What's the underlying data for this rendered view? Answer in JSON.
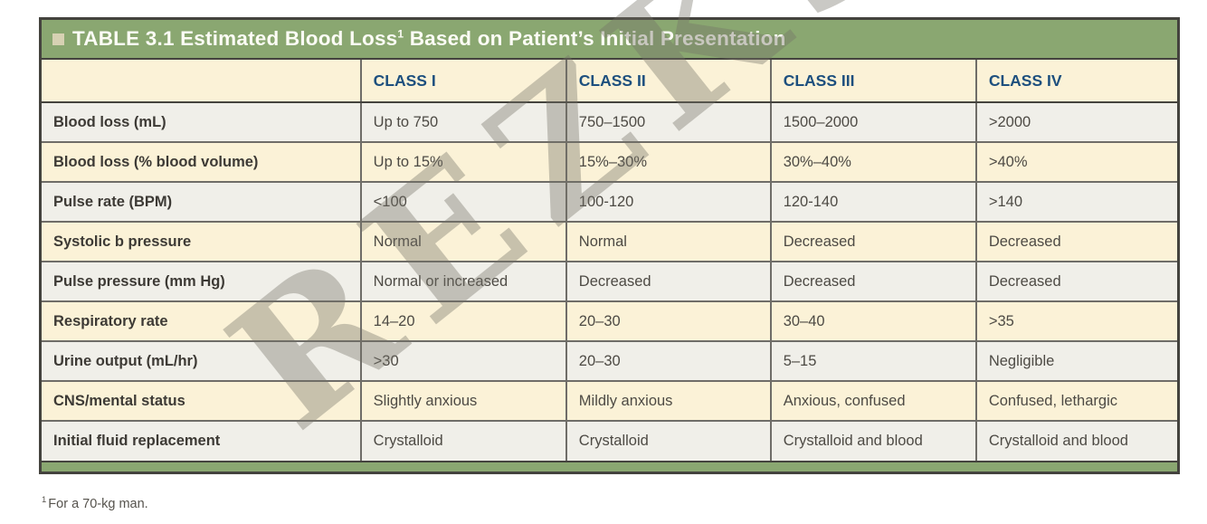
{
  "title": {
    "text": "TABLE 3.1 Estimated Blood Loss",
    "superscript": "1",
    "rest": " Based on Patient’s Initial Presentation"
  },
  "icons": {
    "title_bullet": "square-bullet"
  },
  "table": {
    "columns": [
      "",
      "CLASS I",
      "CLASS II",
      "CLASS III",
      "CLASS IV"
    ],
    "rows": [
      {
        "label": "Blood loss (mL)",
        "values": [
          "Up to 750",
          "750–1500",
          "1500–2000",
          ">2000"
        ]
      },
      {
        "label": "Blood loss (% blood volume)",
        "values": [
          "Up to 15%",
          "15%–30%",
          "30%–40%",
          ">40%"
        ]
      },
      {
        "label": "Pulse rate (BPM)",
        "values": [
          "<100",
          "100-120",
          "120-140",
          ">140"
        ]
      },
      {
        "label": "Systolic b pressure",
        "values": [
          "Normal",
          "Normal",
          "Decreased",
          "Decreased"
        ]
      },
      {
        "label": "Pulse pressure (mm Hg)",
        "values": [
          "Normal or increased",
          "Decreased",
          "Decreased",
          "Decreased"
        ]
      },
      {
        "label": "Respiratory rate",
        "values": [
          "14–20",
          "20–30",
          "30–40",
          ">35"
        ]
      },
      {
        "label": "Urine output (mL/hr)",
        "values": [
          ">30",
          "20–30",
          "5–15",
          "Negligible"
        ]
      },
      {
        "label": "CNS/mental status",
        "values": [
          "Slightly anxious",
          "Mildly anxious",
          "Anxious, confused",
          "Confused, lethargic"
        ]
      },
      {
        "label": "Initial fluid replacement",
        "values": [
          "Crystalloid",
          "Crystalloid",
          "Crystalloid and blood",
          "Crystalloid and blood"
        ]
      }
    ]
  },
  "footnote": {
    "superscript": "1",
    "text": "For a 70-kg man."
  },
  "watermark": "REZKS",
  "colors": {
    "green": "#8aa771",
    "cream": "#fbf2d7",
    "row_gray": "#f0efe9",
    "navy": "#1d4f7e",
    "border_dark": "#44433e",
    "border_mid": "#6f6d68",
    "bullet_beige": "#d7d1b3",
    "watermark": "rgba(116,113,103,0.38)"
  }
}
